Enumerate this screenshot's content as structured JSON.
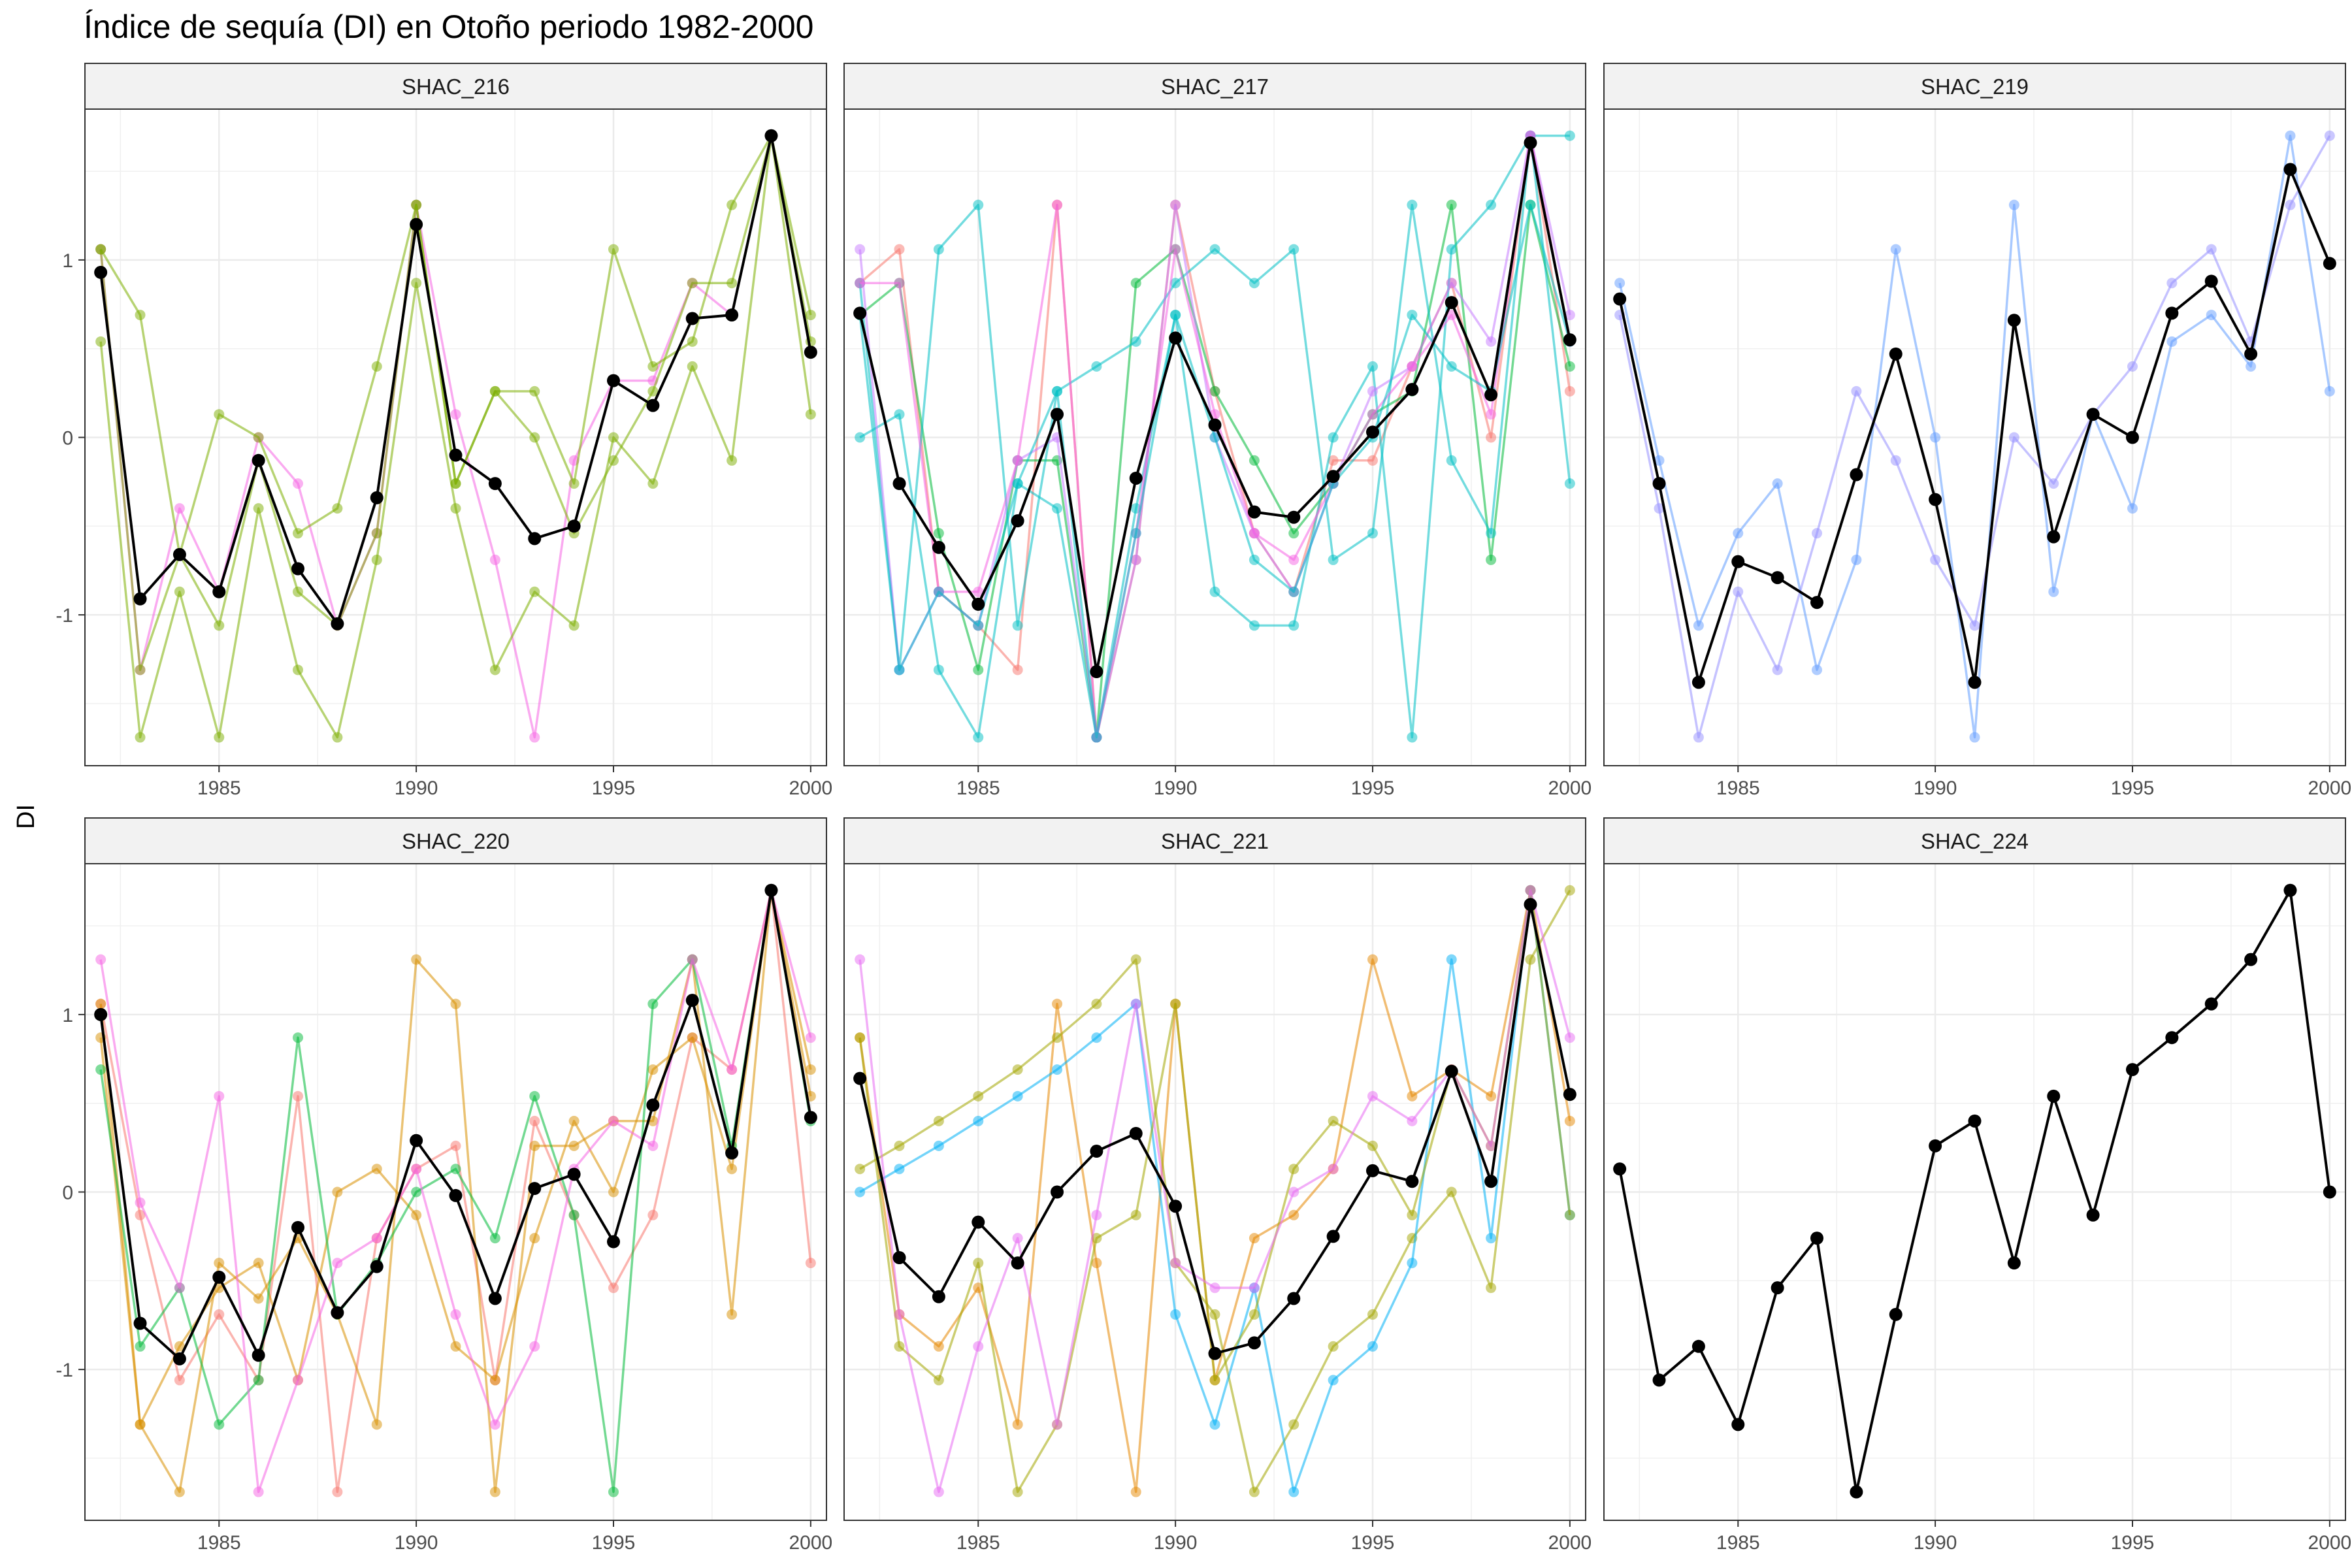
{
  "chart_data": {
    "type": "line",
    "title": "Índice de sequía (DI) en Otoño periodo 1982-2000",
    "xlabel": "",
    "ylabel": "DI",
    "xlim": [
      1981.6,
      2000.4
    ],
    "ylim": [
      -1.85,
      1.85
    ],
    "x_ticks": [
      1985,
      1990,
      1995,
      2000
    ],
    "y_ticks": [
      -1,
      0,
      1
    ],
    "x_tick_labels": [
      "1985",
      "1990",
      "1995",
      "2000"
    ],
    "y_tick_labels": [
      "-1",
      "0",
      "1"
    ],
    "years": [
      1982,
      1983,
      1984,
      1985,
      1986,
      1987,
      1988,
      1989,
      1990,
      1991,
      1992,
      1993,
      1994,
      1995,
      1996,
      1997,
      1998,
      1999,
      2000
    ],
    "panels": [
      {
        "name": "SHAC_216",
        "mean": [
          0.93,
          -0.91,
          -0.66,
          -0.87,
          -0.13,
          -0.74,
          -1.05,
          -0.34,
          1.2,
          -0.1,
          -0.26,
          -0.57,
          -0.5,
          0.32,
          0.18,
          0.67,
          0.69,
          1.7,
          0.48
        ],
        "series": [
          {
            "color": "#F564E3",
            "values": [
              1.06,
              -1.31,
              -0.4,
              -0.87,
              0.0,
              -0.26,
              -1.06,
              -0.54,
              1.31,
              0.13,
              -0.69,
              -1.69,
              -0.13,
              0.32,
              0.32,
              0.87,
              0.69,
              1.7,
              0.48
            ]
          },
          {
            "color": "#7CAE00",
            "values": [
              0.54,
              -1.69,
              -0.87,
              -1.69,
              -0.4,
              -1.31,
              -1.69,
              -0.69,
              0.87,
              -0.4,
              -1.31,
              -0.87,
              -1.06,
              0.0,
              -0.26,
              0.4,
              -0.13,
              1.7,
              0.13
            ]
          },
          {
            "color": "#7CAE00",
            "values": [
              1.06,
              0.69,
              -0.66,
              0.13,
              0.0,
              -0.54,
              -0.4,
              0.4,
              1.31,
              -0.26,
              0.26,
              0.26,
              -0.26,
              1.06,
              0.4,
              0.54,
              1.31,
              1.7,
              0.69
            ]
          },
          {
            "color": "#7CAE00",
            "values": [
              1.06,
              -1.31,
              -0.66,
              -1.06,
              -0.13,
              -0.87,
              -1.06,
              -0.54,
              1.31,
              -0.26,
              0.26,
              0.0,
              -0.54,
              -0.13,
              0.26,
              0.87,
              0.87,
              1.7,
              0.54
            ]
          }
        ]
      },
      {
        "name": "SHAC_217",
        "mean": [
          0.7,
          -0.26,
          -0.62,
          -0.94,
          -0.47,
          0.13,
          -1.32,
          -0.23,
          0.56,
          0.07,
          -0.42,
          -0.45,
          -0.22,
          0.03,
          0.27,
          0.76,
          0.24,
          1.66,
          0.55
        ],
        "series": [
          {
            "color": "#F8766D",
            "values": [
              0.87,
              1.06,
              -0.87,
              -1.06,
              -1.31,
              1.31,
              -1.69,
              -0.69,
              1.31,
              0.26,
              -0.54,
              -0.87,
              -0.13,
              -0.13,
              0.4,
              0.87,
              0.0,
              1.7,
              0.26
            ]
          },
          {
            "color": "#00BA38",
            "values": [
              0.69,
              0.87,
              -0.54,
              -1.31,
              -0.13,
              -0.13,
              -1.69,
              0.87,
              1.06,
              0.26,
              -0.13,
              -0.54,
              -0.26,
              0.13,
              0.26,
              1.31,
              -0.69,
              1.31,
              0.4
            ]
          },
          {
            "color": "#00BFC4",
            "values": [
              0.0,
              0.13,
              -1.31,
              -1.69,
              -0.26,
              -0.4,
              -1.69,
              -0.4,
              0.69,
              -0.87,
              -1.06,
              -1.06,
              0.0,
              0.4,
              -1.69,
              1.06,
              1.31,
              1.7,
              -0.26
            ]
          },
          {
            "color": "#00BFC4",
            "values": [
              0.87,
              -1.31,
              1.06,
              1.31,
              -1.06,
              0.26,
              0.4,
              0.54,
              0.87,
              1.06,
              0.87,
              1.06,
              -0.69,
              -0.54,
              1.31,
              -0.13,
              -0.54,
              1.7,
              1.7
            ]
          },
          {
            "color": "#C77CFF",
            "values": [
              1.06,
              -1.31,
              -0.87,
              -1.06,
              -0.13,
              0.0,
              -1.69,
              -0.69,
              1.31,
              0.0,
              -0.54,
              -0.87,
              -0.26,
              0.26,
              0.4,
              0.87,
              0.54,
              1.7,
              0.69
            ]
          },
          {
            "color": "#F564E3",
            "values": [
              0.87,
              0.87,
              -0.87,
              -0.87,
              -0.13,
              1.31,
              -1.69,
              -0.54,
              1.06,
              0.13,
              -0.54,
              -0.69,
              -0.26,
              0.13,
              0.4,
              0.69,
              0.13,
              1.7,
              0.54
            ]
          },
          {
            "color": "#00BFC4",
            "values": [
              0.69,
              -1.31,
              -0.87,
              -1.06,
              -0.26,
              0.26,
              -1.69,
              -0.54,
              0.69,
              0.0,
              -0.69,
              -0.87,
              -0.26,
              0.0,
              0.69,
              0.4,
              0.26,
              1.31,
              0.54
            ]
          }
        ]
      },
      {
        "name": "SHAC_219",
        "mean": [
          0.78,
          -0.26,
          -1.38,
          -0.7,
          -0.79,
          -0.93,
          -0.21,
          0.47,
          -0.35,
          -1.38,
          0.66,
          -0.56,
          0.13,
          0.0,
          0.7,
          0.88,
          0.47,
          1.51,
          0.98
        ],
        "series": [
          {
            "color": "#619CFF",
            "values": [
              0.87,
              -0.13,
              -1.06,
              -0.54,
              -0.26,
              -1.31,
              -0.69,
              1.06,
              0.0,
              -1.69,
              1.31,
              -0.87,
              0.13,
              -0.4,
              0.54,
              0.69,
              0.4,
              1.7,
              0.26
            ]
          },
          {
            "color": "#9590FF",
            "values": [
              0.69,
              -0.4,
              -1.69,
              -0.87,
              -1.31,
              -0.54,
              0.26,
              -0.13,
              -0.69,
              -1.06,
              0.0,
              -0.26,
              0.13,
              0.4,
              0.87,
              1.06,
              0.54,
              1.31,
              1.7
            ]
          }
        ]
      },
      {
        "name": "SHAC_220",
        "mean": [
          1.0,
          -0.74,
          -0.94,
          -0.48,
          -0.92,
          -0.2,
          -0.68,
          -0.42,
          0.29,
          -0.02,
          -0.6,
          0.02,
          0.1,
          -0.28,
          0.49,
          1.08,
          0.22,
          1.7,
          0.42
        ],
        "series": [
          {
            "color": "#F8766D",
            "values": [
              1.06,
              -0.13,
              -1.06,
              -0.69,
              -1.06,
              0.54,
              -1.69,
              -0.26,
              0.13,
              0.26,
              -1.06,
              0.4,
              -0.13,
              -0.54,
              -0.13,
              0.87,
              0.69,
              1.7,
              -0.4
            ]
          },
          {
            "color": "#D89000",
            "values": [
              0.87,
              -1.31,
              -0.87,
              -0.54,
              -0.4,
              -1.06,
              0.0,
              0.13,
              -0.13,
              -0.87,
              -1.06,
              -0.26,
              0.4,
              0.0,
              0.69,
              0.87,
              0.13,
              1.7,
              0.69
            ]
          },
          {
            "color": "#D89000",
            "values": [
              1.06,
              -1.31,
              -1.69,
              -0.4,
              -0.6,
              -0.26,
              -0.69,
              -1.31,
              1.31,
              1.06,
              -1.69,
              0.26,
              0.26,
              0.4,
              0.4,
              1.31,
              -0.69,
              1.7,
              0.54
            ]
          },
          {
            "color": "#00BA38",
            "values": [
              0.69,
              -0.87,
              -0.54,
              -1.31,
              -1.06,
              0.87,
              -0.69,
              -0.4,
              0.0,
              0.13,
              -0.26,
              0.54,
              -0.13,
              -1.69,
              1.06,
              1.31,
              0.26,
              1.7,
              0.4
            ]
          },
          {
            "color": "#F564E3",
            "values": [
              1.31,
              -0.06,
              -0.54,
              0.54,
              -1.69,
              -1.06,
              -0.4,
              -0.26,
              0.13,
              -0.69,
              -1.31,
              -0.87,
              0.13,
              0.4,
              0.26,
              1.31,
              0.69,
              1.7,
              0.87
            ]
          }
        ]
      },
      {
        "name": "SHAC_221",
        "mean": [
          0.64,
          -0.37,
          -0.59,
          -0.17,
          -0.4,
          0.0,
          0.23,
          0.33,
          -0.08,
          -0.91,
          -0.85,
          -0.6,
          -0.25,
          0.12,
          0.06,
          0.68,
          0.06,
          1.62,
          0.55
        ],
        "series": [
          {
            "color": "#E58700",
            "values": [
              0.87,
              -0.69,
              -0.87,
              -0.54,
              -1.31,
              1.06,
              -0.4,
              -1.69,
              1.06,
              -1.06,
              -0.26,
              -0.13,
              0.13,
              1.31,
              0.54,
              0.69,
              0.54,
              1.7,
              0.4
            ]
          },
          {
            "color": "#A3A500",
            "values": [
              0.13,
              0.26,
              0.4,
              0.54,
              0.69,
              0.87,
              1.06,
              1.31,
              -0.4,
              -0.69,
              -1.69,
              -1.31,
              -0.87,
              -0.69,
              -0.26,
              0.0,
              -0.54,
              1.31,
              1.7
            ]
          },
          {
            "color": "#00B0F6",
            "values": [
              0.0,
              0.13,
              0.26,
              0.4,
              0.54,
              0.69,
              0.87,
              1.06,
              -0.69,
              -1.31,
              -0.54,
              -1.69,
              -1.06,
              -0.87,
              -0.4,
              1.31,
              -0.26,
              1.7,
              -0.13
            ]
          },
          {
            "color": "#A3A500",
            "values": [
              0.87,
              -0.87,
              -1.06,
              -0.4,
              -1.69,
              -1.31,
              -0.26,
              -0.13,
              1.06,
              -1.06,
              -0.69,
              0.13,
              0.4,
              0.26,
              -0.13,
              0.69,
              0.26,
              1.7,
              -0.13
            ]
          },
          {
            "color": "#E76BF3",
            "values": [
              1.31,
              -0.69,
              -1.69,
              -0.87,
              -0.26,
              -1.31,
              -0.13,
              1.06,
              -0.4,
              -0.54,
              -0.54,
              0.0,
              0.13,
              0.54,
              0.4,
              0.69,
              0.26,
              1.7,
              0.87
            ]
          }
        ]
      },
      {
        "name": "SHAC_224",
        "mean": [
          0.13,
          -1.06,
          -0.87,
          -1.31,
          -0.54,
          -0.26,
          -1.69,
          -0.69,
          0.26,
          0.4,
          -0.4,
          0.54,
          -0.13,
          0.69,
          0.87,
          1.06,
          1.31,
          1.7,
          0.0
        ],
        "series": []
      }
    ]
  }
}
